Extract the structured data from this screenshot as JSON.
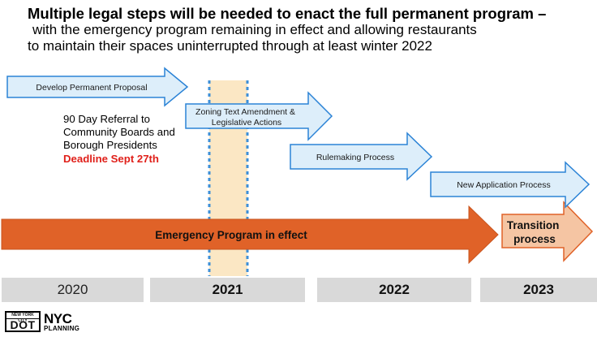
{
  "headline": {
    "bold_line": "Multiple legal steps will be needed to enact the full permanent program –",
    "line2": "with the emergency program remaining in effect and allowing restaurants",
    "line3": "to maintain their spaces uninterrupted through at least winter 2022"
  },
  "steps": [
    {
      "label_lines": [
        "Develop Permanent Proposal"
      ]
    },
    {
      "label_lines": [
        "Zoning Text Amendment &",
        "Legislative Actions"
      ]
    },
    {
      "label_lines": [
        "Rulemaking Process"
      ]
    },
    {
      "label_lines": [
        "New Application Process"
      ]
    }
  ],
  "referral": {
    "lines": [
      "90 Day Referral to",
      "Community Boards and",
      "Borough Presidents"
    ],
    "deadline": "Deadline Sept 27th"
  },
  "emergency_program": {
    "label": "Emergency Program in effect"
  },
  "transition": {
    "label_lines": [
      "Transition",
      "process"
    ]
  },
  "years": [
    "2020",
    "2021",
    "2022",
    "2023"
  ],
  "logos": {
    "dot_top": "NEW YORK CITY",
    "dot_main": "DOT",
    "nyc": "NYC",
    "planning": "PLANNING"
  },
  "colors": {
    "step_arrow_fill": "#ddeefa",
    "step_arrow_stroke": "#2b83d6",
    "emergency_fill": "#e06228",
    "transition_fill": "#f5c5a3",
    "transition_stroke": "#e06228",
    "highlight_band": "#fbe7c4",
    "highlight_border": "#3d8fd8",
    "deadline": "#e0201a",
    "year_bar": "#d9d9d9"
  }
}
